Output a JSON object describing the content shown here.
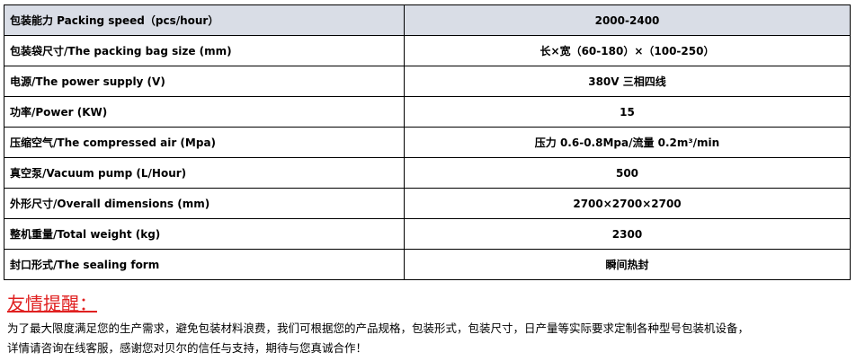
{
  "spec_table": {
    "rows": [
      {
        "label": "包装能力 Packing speed（pcs/hour）",
        "value": "2000-2400"
      },
      {
        "label": "包装袋尺寸/The packing bag size (mm)",
        "value": "长×宽（60-180）×（100-250）"
      },
      {
        "label": "电源/The power supply (V)",
        "value": "380V  三相四线"
      },
      {
        "label": "功率/Power (KW)",
        "value": "15"
      },
      {
        "label": "压缩空气/The compressed air (Mpa)",
        "value": "压力 0.6-0.8Mpa/流量 0.2m³/min"
      },
      {
        "label": "真空泵/Vacuum pump (L/Hour)",
        "value": "500"
      },
      {
        "label": "外形尺寸/Overall dimensions (mm)",
        "value": "2700×2700×2700"
      },
      {
        "label": "整机重量/Total weight (kg)",
        "value": "2300"
      },
      {
        "label": "封口形式/The sealing form",
        "value": "瞬间热封"
      }
    ],
    "header_bg": "#d9dde6"
  },
  "notice": {
    "title": "友情提醒：",
    "title_color": "#e02020",
    "line1": "为了最大限度满足您的生产需求，避免包装材料浪费，我们可根据您的产品规格，包装形式，包装尺寸，日产量等实际要求定制各种型号包装机设备，",
    "line2": "详情请咨询在线客服，感谢您对贝尔的信任与支持，期待与您真诚合作！"
  }
}
